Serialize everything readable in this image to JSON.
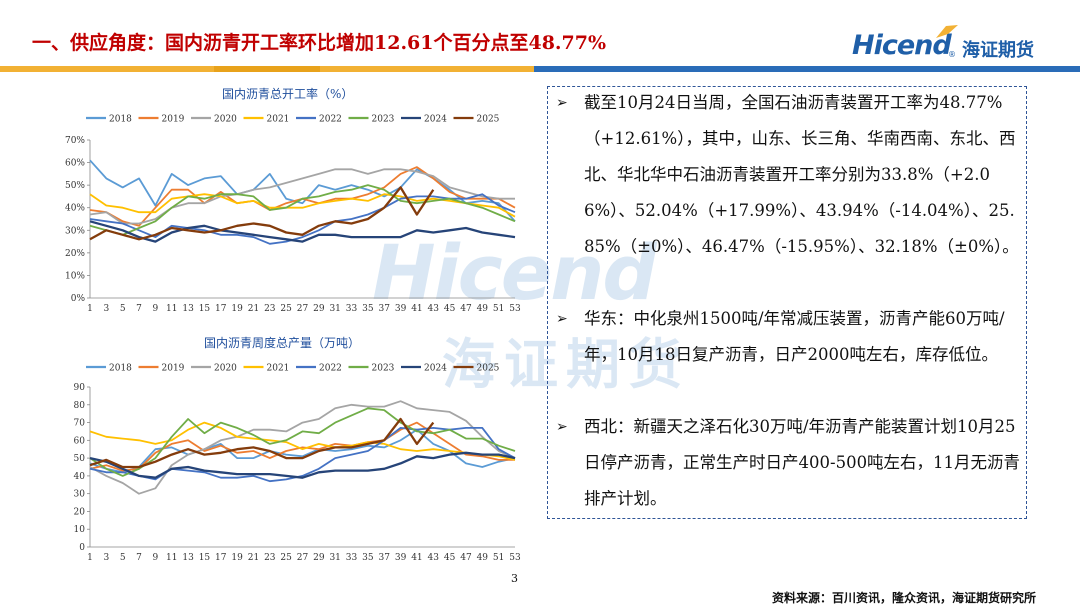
{
  "header": {
    "title": "一、供应角度：国内沥青开工率环比增加12.61个百分点至48.77%",
    "logo_en": "Hicend",
    "logo_reg": "®",
    "logo_cn": "海证期货",
    "band_colors": [
      "#f2b134",
      "#f2b134",
      "#e8a21b",
      "#2a6cb8",
      "#2a6cb8"
    ]
  },
  "watermark": {
    "en": "Hicend",
    "cn": "海证期货"
  },
  "colors": {
    "2018": "#5b9bd5",
    "2019": "#ed7d31",
    "2020": "#a5a5a5",
    "2021": "#ffc000",
    "2022": "#4472c4",
    "2023": "#70ad47",
    "2024": "#264478",
    "2025": "#843c0c"
  },
  "chart_data": [
    {
      "type": "line",
      "title": "国内沥青总开工率（%）",
      "x": [
        "1",
        "3",
        "5",
        "7",
        "9",
        "11",
        "13",
        "15",
        "17",
        "19",
        "21",
        "23",
        "25",
        "27",
        "29",
        "31",
        "33",
        "35",
        "37",
        "39",
        "41",
        "43",
        "45",
        "47",
        "49",
        "51",
        "53"
      ],
      "ylim": [
        0,
        70
      ],
      "yticks": [
        "0%",
        "10%",
        "20%",
        "30%",
        "40%",
        "50%",
        "60%",
        "70%"
      ],
      "grid": false,
      "legend": "top",
      "series": [
        {
          "name": "2018",
          "values": [
            61,
            53,
            49,
            53,
            41,
            55,
            50,
            53,
            54,
            46,
            48,
            55,
            44,
            42,
            50,
            48,
            50,
            48,
            45,
            49,
            57,
            53,
            48,
            42,
            43,
            42,
            34
          ]
        },
        {
          "name": "2019",
          "values": [
            39,
            38,
            34,
            32,
            40,
            48,
            48,
            42,
            47,
            42,
            43,
            39,
            42,
            44,
            42,
            44,
            44,
            46,
            49,
            55,
            58,
            53,
            47,
            44,
            44,
            44,
            40
          ]
        },
        {
          "name": "2020",
          "values": [
            37,
            38,
            33,
            33,
            35,
            40,
            42,
            42,
            45,
            46,
            48,
            49,
            51,
            53,
            55,
            57,
            57,
            55,
            57,
            57,
            56,
            54,
            49,
            47,
            45,
            44,
            44
          ]
        },
        {
          "name": "2021",
          "values": [
            46,
            41,
            40,
            38,
            38,
            44,
            45,
            46,
            45,
            42,
            43,
            40,
            40,
            40,
            42,
            43,
            44,
            43,
            46,
            45,
            43,
            44,
            43,
            42,
            41,
            40,
            36
          ]
        },
        {
          "name": "2022",
          "values": [
            35,
            34,
            33,
            30,
            27,
            32,
            31,
            30,
            28,
            28,
            27,
            24,
            25,
            27,
            30,
            34,
            35,
            37,
            40,
            44,
            45,
            45,
            44,
            44,
            46,
            41,
            38
          ]
        },
        {
          "name": "2023",
          "values": [
            32,
            30,
            28,
            31,
            34,
            40,
            45,
            44,
            46,
            46,
            45,
            39,
            40,
            44,
            45,
            47,
            48,
            50,
            48,
            43,
            42,
            43,
            44,
            42,
            40,
            37,
            34
          ]
        },
        {
          "name": "2024",
          "values": [
            34,
            32,
            30,
            27,
            25,
            29,
            31,
            32,
            30,
            29,
            28,
            27,
            26,
            25,
            28,
            28,
            27,
            27,
            27,
            27,
            30,
            29,
            30,
            31,
            29,
            28,
            27
          ]
        },
        {
          "name": "2025",
          "values": [
            26,
            30,
            28,
            26,
            28,
            31,
            30,
            29,
            30,
            32,
            33,
            32,
            29,
            28,
            32,
            34,
            33,
            35,
            40,
            49,
            37,
            48,
            null,
            null,
            null,
            null,
            null
          ]
        }
      ]
    },
    {
      "type": "line",
      "title": "国内沥青周度总产量（万吨）",
      "x": [
        "1",
        "3",
        "5",
        "7",
        "9",
        "11",
        "13",
        "15",
        "17",
        "19",
        "21",
        "23",
        "25",
        "27",
        "29",
        "31",
        "33",
        "35",
        "37",
        "39",
        "41",
        "43",
        "45",
        "47",
        "49",
        "51",
        "53"
      ],
      "ylim": [
        0,
        90
      ],
      "yticks": [
        "0",
        "10",
        "20",
        "30",
        "40",
        "50",
        "60",
        "70",
        "80",
        "90"
      ],
      "grid": false,
      "legend": "top",
      "series": [
        {
          "name": "2018",
          "values": [
            47,
            44,
            42,
            45,
            55,
            56,
            52,
            55,
            58,
            50,
            50,
            54,
            52,
            51,
            55,
            54,
            55,
            57,
            56,
            60,
            66,
            58,
            54,
            47,
            45,
            48,
            50
          ]
        },
        {
          "name": "2019",
          "values": [
            44,
            46,
            43,
            44,
            53,
            58,
            60,
            54,
            57,
            53,
            54,
            50,
            54,
            56,
            55,
            58,
            57,
            59,
            60,
            66,
            70,
            64,
            58,
            52,
            51,
            49,
            49
          ]
        },
        {
          "name": "2020",
          "values": [
            45,
            40,
            36,
            30,
            33,
            46,
            52,
            55,
            60,
            62,
            66,
            66,
            65,
            70,
            72,
            78,
            80,
            79,
            79,
            82,
            78,
            77,
            76,
            71,
            62,
            54,
            50
          ]
        },
        {
          "name": "2021",
          "values": [
            65,
            62,
            61,
            60,
            58,
            60,
            66,
            70,
            67,
            62,
            61,
            60,
            59,
            55,
            58,
            56,
            57,
            59,
            58,
            55,
            54,
            55,
            54,
            53,
            52,
            51,
            49
          ]
        },
        {
          "name": "2022",
          "values": [
            44,
            42,
            42,
            40,
            38,
            44,
            43,
            42,
            39,
            39,
            40,
            37,
            38,
            40,
            44,
            50,
            52,
            54,
            60,
            67,
            66,
            67,
            66,
            67,
            67,
            55,
            50
          ]
        },
        {
          "name": "2023",
          "values": [
            50,
            44,
            40,
            44,
            50,
            62,
            72,
            64,
            70,
            67,
            63,
            58,
            60,
            65,
            64,
            70,
            74,
            78,
            77,
            70,
            65,
            64,
            66,
            61,
            61,
            57,
            54
          ]
        },
        {
          "name": "2024",
          "values": [
            50,
            48,
            44,
            40,
            39,
            44,
            45,
            43,
            42,
            41,
            41,
            41,
            40,
            39,
            42,
            43,
            43,
            43,
            44,
            47,
            51,
            50,
            52,
            53,
            52,
            52,
            50
          ]
        },
        {
          "name": "2025",
          "values": [
            46,
            49,
            45,
            45,
            48,
            52,
            55,
            52,
            53,
            55,
            56,
            54,
            50,
            50,
            54,
            56,
            56,
            58,
            60,
            72,
            58,
            70,
            null,
            null,
            null,
            null,
            null
          ]
        }
      ]
    }
  ],
  "bullets": [
    "截至10月24日当周，全国石油沥青装置开工率为48.77%（+12.61%），其中，山东、长三角、华南西南、东北、西北、华北华中石油沥青装置开工率分别为33.8%（+2.06%）、52.04%（+17.99%）、43.94%（-14.04%）、25.85%（±0%）、46.47%（-15.95%）、32.18%（±0%）。",
    "华东：中化泉州1500吨/年常减压装置，沥青产能60万吨/年，10月18日复产沥青，日产2000吨左右，库存低位。",
    "西北：新疆天之泽石化30万吨/年沥青产能装置计划10月25日停产沥青，正常生产时日产400-500吨左右，11月无沥青排产计划。"
  ],
  "bullet_glyph": "➢",
  "page_number": "3",
  "source": "资料来源：百川资讯，隆众资讯，海证期货研究所"
}
